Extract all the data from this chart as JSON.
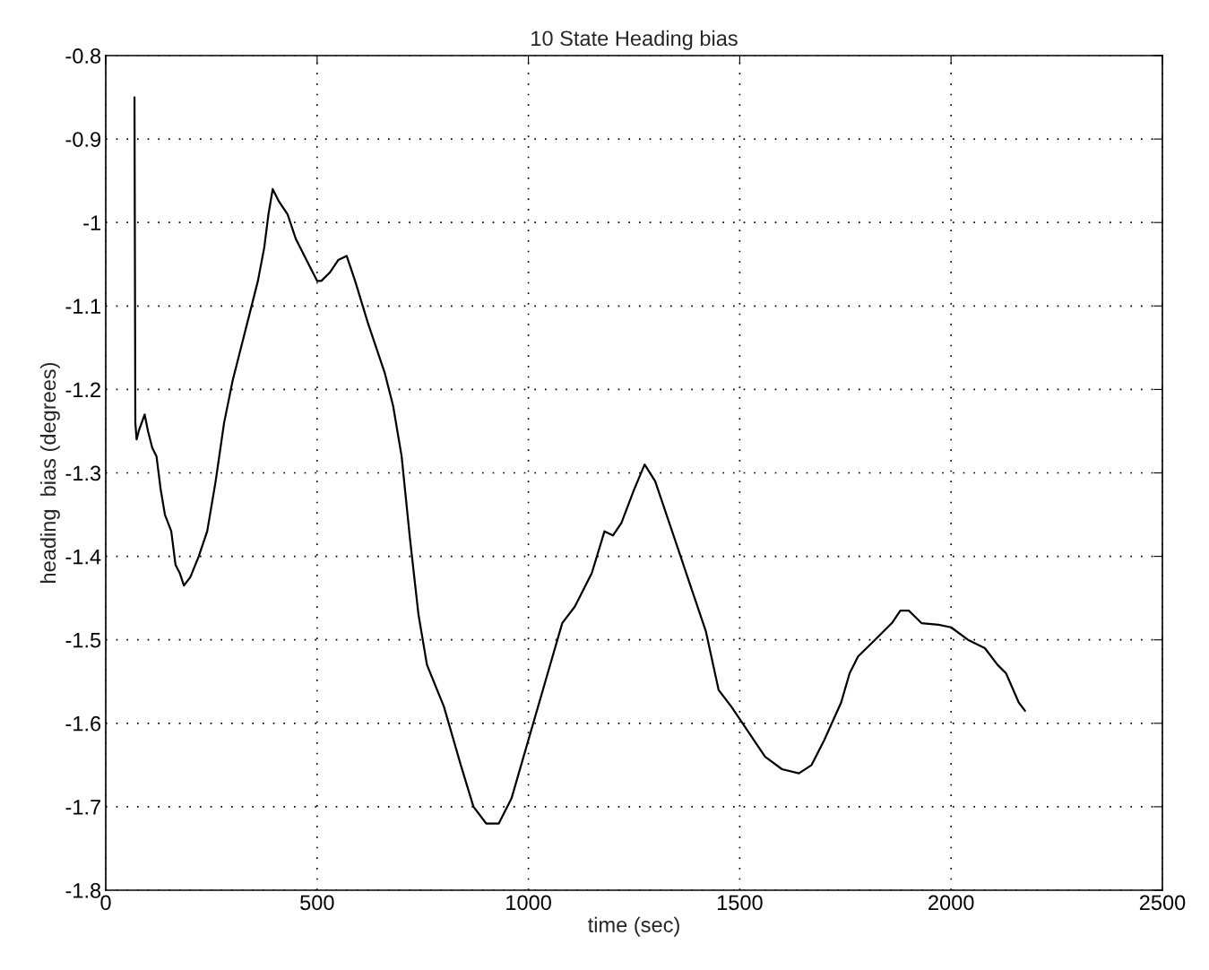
{
  "chart_data": {
    "type": "line",
    "title": "10 State Heading bias",
    "xlabel": "time (sec)",
    "ylabel": "heading  bias (degrees)",
    "xlim": [
      0,
      2500
    ],
    "xticks": [
      0,
      500,
      1000,
      1500,
      2000,
      2500
    ],
    "ylim": [
      -1.8,
      -0.8
    ],
    "yticks": [
      -1.8,
      -1.7,
      -1.6,
      -1.5,
      -1.4,
      -1.3,
      -1.2,
      -1.1,
      -1,
      -0.9,
      -0.8
    ],
    "grid": true,
    "marker": "none",
    "line_style": "solid",
    "series": [
      {
        "color": "#000000",
        "x": [
          68,
          70,
          73,
          78,
          85,
          92,
          100,
          110,
          120,
          130,
          140,
          155,
          165,
          175,
          185,
          200,
          220,
          240,
          260,
          280,
          300,
          320,
          340,
          360,
          375,
          385,
          395,
          410,
          430,
          450,
          480,
          500,
          510,
          530,
          550,
          570,
          590,
          620,
          660,
          680,
          700,
          720,
          740,
          760,
          800,
          840,
          870,
          900,
          930,
          960,
          1000,
          1040,
          1080,
          1110,
          1150,
          1180,
          1200,
          1220,
          1250,
          1275,
          1300,
          1340,
          1380,
          1420,
          1450,
          1480,
          1520,
          1560,
          1600,
          1640,
          1670,
          1700,
          1740,
          1760,
          1780,
          1820,
          1860,
          1880,
          1900,
          1930,
          1970,
          2000,
          2040,
          2080,
          2110,
          2130,
          2160,
          2175
        ],
        "values": [
          -0.85,
          -1.24,
          -1.26,
          -1.25,
          -1.24,
          -1.23,
          -1.25,
          -1.27,
          -1.28,
          -1.32,
          -1.35,
          -1.37,
          -1.41,
          -1.42,
          -1.435,
          -1.425,
          -1.4,
          -1.37,
          -1.31,
          -1.24,
          -1.19,
          -1.15,
          -1.11,
          -1.07,
          -1.03,
          -0.99,
          -0.96,
          -0.975,
          -0.99,
          -1.02,
          -1.05,
          -1.07,
          -1.07,
          -1.06,
          -1.045,
          -1.04,
          -1.07,
          -1.12,
          -1.18,
          -1.22,
          -1.28,
          -1.38,
          -1.47,
          -1.53,
          -1.58,
          -1.65,
          -1.7,
          -1.72,
          -1.72,
          -1.69,
          -1.62,
          -1.55,
          -1.48,
          -1.46,
          -1.42,
          -1.37,
          -1.375,
          -1.36,
          -1.32,
          -1.29,
          -1.31,
          -1.37,
          -1.43,
          -1.49,
          -1.56,
          -1.58,
          -1.61,
          -1.64,
          -1.655,
          -1.66,
          -1.65,
          -1.62,
          -1.575,
          -1.54,
          -1.52,
          -1.5,
          -1.48,
          -1.465,
          -1.465,
          -1.48,
          -1.482,
          -1.485,
          -1.5,
          -1.51,
          -1.53,
          -1.54,
          -1.575,
          -1.585
        ]
      }
    ]
  }
}
